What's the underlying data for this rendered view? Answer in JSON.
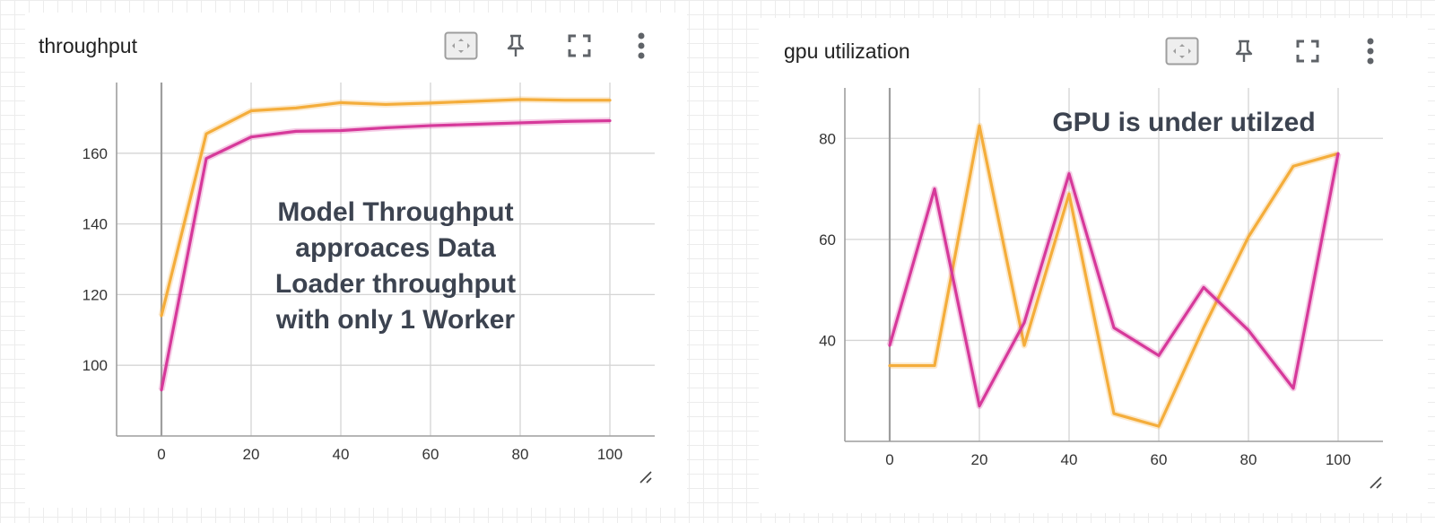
{
  "colors": {
    "orange": "#f4ad3b",
    "magenta": "#d6399a",
    "annotation": "#3c4350",
    "grid": "#d4d4d4",
    "axis": "#9e9e9e",
    "icon": "#5f6368"
  },
  "icons": [
    "fit-to-data-icon",
    "pin-icon",
    "fullscreen-icon",
    "more-vert-icon",
    "resize-handle-icon"
  ],
  "cards": [
    {
      "title": "throughput"
    },
    {
      "title": "gpu utilization"
    }
  ],
  "chart_data": [
    {
      "type": "line",
      "title": "throughput",
      "annotation": [
        "Model Throughput",
        "approaces Data",
        "Loader throughput",
        "with only 1 Worker"
      ],
      "xlim": [
        -10,
        110
      ],
      "ylim": [
        80,
        180
      ],
      "x_ticks": [
        0,
        20,
        40,
        60,
        80,
        100
      ],
      "y_ticks": [
        100,
        120,
        140,
        160
      ],
      "grid": true,
      "series": [
        {
          "color": "orange",
          "x": [
            0,
            10,
            20,
            30,
            40,
            50,
            60,
            70,
            80,
            90,
            100
          ],
          "y": [
            114,
            165.5,
            172,
            172.8,
            174.3,
            173.8,
            174.2,
            174.7,
            175.2,
            175.0,
            175.0
          ]
        },
        {
          "color": "magenta",
          "x": [
            0,
            10,
            20,
            30,
            40,
            50,
            60,
            70,
            80,
            90,
            100
          ],
          "y": [
            93,
            158.5,
            164.6,
            166.2,
            166.4,
            167.2,
            167.8,
            168.2,
            168.6,
            169.0,
            169.2
          ]
        }
      ]
    },
    {
      "type": "line",
      "title": "gpu utilization",
      "annotation": [
        "GPU is under utilzed"
      ],
      "xlim": [
        -10,
        110
      ],
      "ylim": [
        20,
        90
      ],
      "x_ticks": [
        0,
        20,
        40,
        60,
        80,
        100
      ],
      "y_ticks": [
        40,
        60,
        80
      ],
      "grid": true,
      "series": [
        {
          "color": "orange",
          "x": [
            0,
            10,
            20,
            30,
            40,
            50,
            60,
            70,
            80,
            90,
            100
          ],
          "y": [
            35,
            35,
            82.5,
            39,
            69,
            25.5,
            23,
            42.5,
            60.5,
            74.5,
            77
          ]
        },
        {
          "color": "magenta",
          "x": [
            0,
            10,
            20,
            30,
            40,
            50,
            60,
            70,
            80,
            90,
            100
          ],
          "y": [
            39,
            70,
            27,
            43.5,
            73,
            42.5,
            37,
            50.5,
            42,
            30.5,
            77
          ]
        }
      ]
    }
  ]
}
